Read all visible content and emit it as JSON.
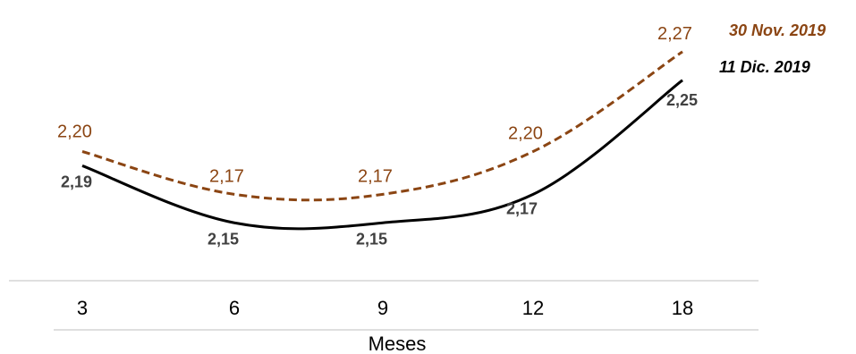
{
  "chart_data": {
    "type": "line",
    "categories": [
      "3",
      "6",
      "9",
      "12",
      "18"
    ],
    "xlabel": "Meses",
    "ylabel": "",
    "ylim": [
      2.1,
      2.3
    ],
    "grid": false,
    "series": [
      {
        "name": "30 Nov. 2019",
        "values": [
          2.2,
          2.17,
          2.17,
          2.2,
          2.27
        ],
        "labels": [
          "2,20",
          "2,17",
          "2,17",
          "2,20",
          "2,27"
        ],
        "color": "#8B4513",
        "style": "dashed"
      },
      {
        "name": "11 Dic. 2019",
        "values": [
          2.19,
          2.15,
          2.15,
          2.17,
          2.25
        ],
        "labels": [
          "2,19",
          "2,15",
          "2,15",
          "2,17",
          "2,25"
        ],
        "color": "#000000",
        "style": "solid"
      }
    ],
    "legend_placement": "top-right"
  }
}
